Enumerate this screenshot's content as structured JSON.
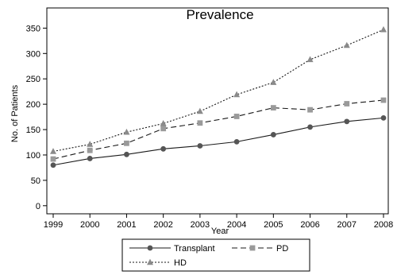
{
  "chart_data": {
    "type": "line",
    "title": "Prevalence",
    "xlabel": "Year",
    "ylabel": "No. of Patients",
    "x": [
      1999,
      2000,
      2001,
      2002,
      2003,
      2004,
      2005,
      2006,
      2007,
      2008
    ],
    "xticks": [
      "1999",
      "2000",
      "2001",
      "2002",
      "2003",
      "2004",
      "2005",
      "2006",
      "2007",
      "2008"
    ],
    "yticks": [
      0,
      50,
      100,
      150,
      200,
      250,
      300,
      350
    ],
    "xlim": [
      1999,
      2008
    ],
    "ylim": [
      -5,
      360
    ],
    "grid": false,
    "legend_position": "bottom",
    "series": [
      {
        "name": "Transplant",
        "values": [
          80,
          93,
          101,
          112,
          118,
          126,
          140,
          155,
          166,
          173
        ],
        "color": "#1a1a1a",
        "dash": "solid",
        "marker": "circle"
      },
      {
        "name": "PD",
        "values": [
          92,
          109,
          123,
          152,
          163,
          176,
          193,
          189,
          201,
          208
        ],
        "color": "#1a1a1a",
        "dash": "dashed",
        "marker": "square"
      },
      {
        "name": "HD",
        "values": [
          107,
          121,
          145,
          162,
          186,
          219,
          243,
          288,
          316,
          347
        ],
        "color": "#1a1a1a",
        "dash": "dotted",
        "marker": "triangle"
      }
    ]
  }
}
